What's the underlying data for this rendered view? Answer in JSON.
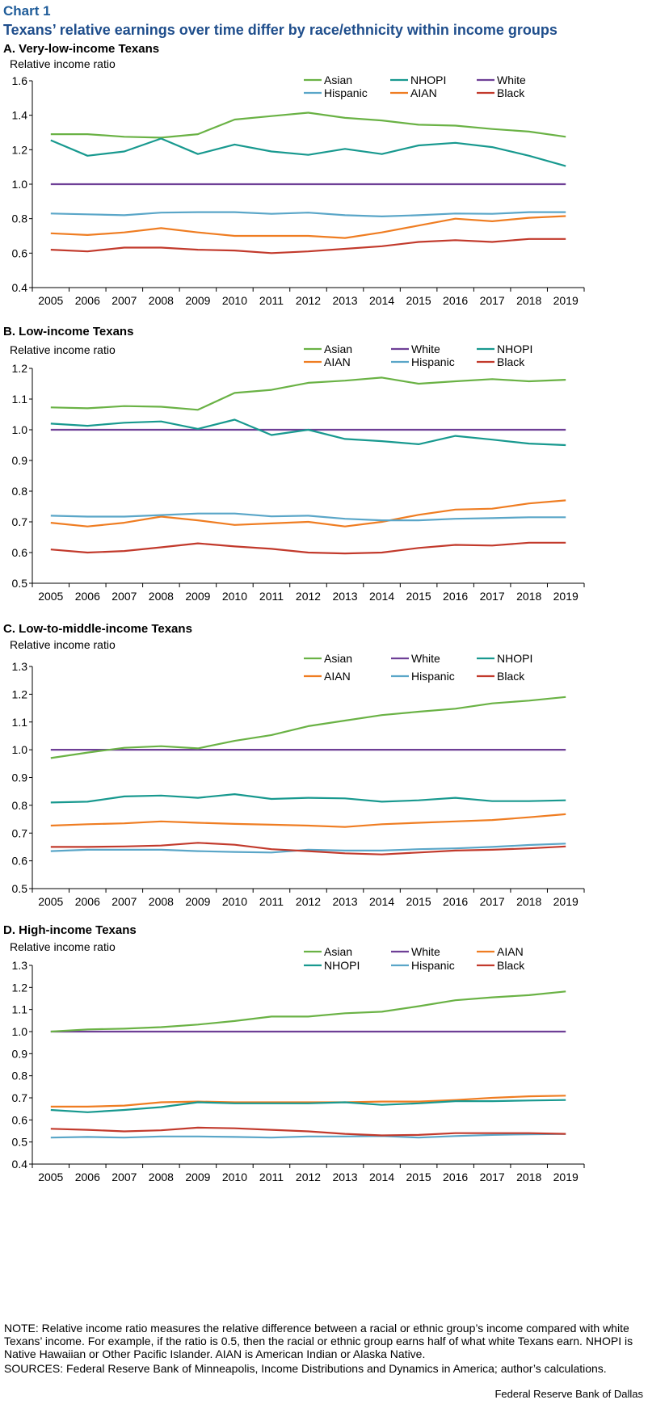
{
  "header": {
    "label": "Chart 1",
    "title": "Texans’ relative earnings over time differ by race/ethnicity within income groups"
  },
  "colors": {
    "Asian": "#6ab245",
    "NHOPI": "#18998f",
    "White": "#6e3f96",
    "Hispanic": "#5aa6c8",
    "AIAN": "#ef7d22",
    "Black": "#c23a2c"
  },
  "panels": [
    {
      "title": "A. Very-low-income Texans"
    },
    {
      "title": "B. Low-income Texans"
    },
    {
      "title": "C. Low-to-middle-income Texans"
    },
    {
      "title": "D. High-income Texans"
    }
  ],
  "chart_data": [
    {
      "type": "line",
      "title": "A. Very-low-income Texans",
      "ylabel": "Relative income ratio",
      "xlabel": "",
      "ylim": [
        0.4,
        1.6
      ],
      "yticks": [
        "0.4",
        "0.6",
        "0.8",
        "1.0",
        "1.2",
        "1.4",
        "1.6"
      ],
      "x": [
        "2005",
        "2006",
        "2007",
        "2008",
        "2009",
        "2010",
        "2011",
        "2012",
        "2013",
        "2014",
        "2015",
        "2016",
        "2017",
        "2018",
        "2019"
      ],
      "legend": [
        [
          "Asian",
          "NHOPI",
          "White"
        ],
        [
          "Hispanic",
          "AIAN",
          "Black"
        ]
      ],
      "series": [
        {
          "name": "Asian",
          "values": [
            1.29,
            1.29,
            1.275,
            1.27,
            1.29,
            1.375,
            1.395,
            1.415,
            1.385,
            1.37,
            1.345,
            1.34,
            1.32,
            1.305,
            1.275
          ]
        },
        {
          "name": "NHOPI",
          "values": [
            1.255,
            1.165,
            1.19,
            1.265,
            1.175,
            1.23,
            1.19,
            1.17,
            1.205,
            1.175,
            1.225,
            1.24,
            1.215,
            1.165,
            1.105
          ]
        },
        {
          "name": "White",
          "values": [
            1,
            1,
            1,
            1,
            1,
            1,
            1,
            1,
            1,
            1,
            1,
            1,
            1,
            1,
            1
          ]
        },
        {
          "name": "Hispanic",
          "values": [
            0.83,
            0.825,
            0.82,
            0.835,
            0.838,
            0.838,
            0.828,
            0.835,
            0.82,
            0.813,
            0.82,
            0.83,
            0.828,
            0.838,
            0.838
          ]
        },
        {
          "name": "AIAN",
          "values": [
            0.715,
            0.705,
            0.72,
            0.745,
            0.72,
            0.7,
            0.7,
            0.7,
            0.688,
            0.72,
            0.76,
            0.8,
            0.785,
            0.805,
            0.815
          ]
        },
        {
          "name": "Black",
          "values": [
            0.62,
            0.61,
            0.632,
            0.632,
            0.62,
            0.615,
            0.6,
            0.61,
            0.625,
            0.64,
            0.665,
            0.675,
            0.665,
            0.682,
            0.682
          ]
        }
      ]
    },
    {
      "type": "line",
      "title": "B. Low-income Texans",
      "ylabel": "Relative income ratio",
      "xlabel": "",
      "ylim": [
        0.5,
        1.2
      ],
      "yticks": [
        "0.5",
        "0.6",
        "0.7",
        "0.8",
        "0.9",
        "1.0",
        "1.1",
        "1.2"
      ],
      "x": [
        "2005",
        "2006",
        "2007",
        "2008",
        "2009",
        "2010",
        "2011",
        "2012",
        "2013",
        "2014",
        "2015",
        "2016",
        "2017",
        "2018",
        "2019"
      ],
      "legend": [
        [
          "Asian",
          "White",
          "NHOPI"
        ],
        [
          "AIAN",
          "Hispanic",
          "Black"
        ]
      ],
      "series": [
        {
          "name": "Asian",
          "values": [
            1.073,
            1.07,
            1.077,
            1.075,
            1.065,
            1.12,
            1.13,
            1.153,
            1.16,
            1.17,
            1.15,
            1.158,
            1.165,
            1.158,
            1.163
          ]
        },
        {
          "name": "White",
          "values": [
            1,
            1,
            1,
            1,
            1,
            1,
            1,
            1,
            1,
            1,
            1,
            1,
            1,
            1,
            1
          ]
        },
        {
          "name": "NHOPI",
          "values": [
            1.02,
            1.013,
            1.023,
            1.027,
            1.003,
            1.033,
            0.983,
            1.0,
            0.97,
            0.963,
            0.953,
            0.98,
            0.968,
            0.955,
            0.95
          ]
        },
        {
          "name": "AIAN",
          "values": [
            0.697,
            0.685,
            0.697,
            0.717,
            0.705,
            0.69,
            0.695,
            0.7,
            0.685,
            0.7,
            0.723,
            0.74,
            0.743,
            0.76,
            0.77
          ]
        },
        {
          "name": "Hispanic",
          "values": [
            0.72,
            0.717,
            0.717,
            0.722,
            0.727,
            0.727,
            0.718,
            0.72,
            0.71,
            0.705,
            0.705,
            0.71,
            0.712,
            0.715,
            0.715
          ]
        },
        {
          "name": "Black",
          "values": [
            0.61,
            0.6,
            0.605,
            0.617,
            0.63,
            0.62,
            0.612,
            0.6,
            0.597,
            0.6,
            0.615,
            0.625,
            0.623,
            0.632,
            0.632
          ]
        }
      ]
    },
    {
      "type": "line",
      "title": "C. Low-to-middle-income Texans",
      "ylabel": "Relative income ratio",
      "xlabel": "",
      "ylim": [
        0.5,
        1.3
      ],
      "yticks": [
        "0.5",
        "0.6",
        "0.7",
        "0.8",
        "0.9",
        "1.0",
        "1.1",
        "1.2",
        "1.3"
      ],
      "x": [
        "2005",
        "2006",
        "2007",
        "2008",
        "2009",
        "2010",
        "2011",
        "2012",
        "2013",
        "2014",
        "2015",
        "2016",
        "2017",
        "2018",
        "2019"
      ],
      "legend": [
        [
          "Asian",
          "White",
          "NHOPI"
        ],
        [
          "AIAN",
          "Hispanic",
          "Black"
        ]
      ],
      "series": [
        {
          "name": "Asian",
          "values": [
            0.97,
            0.99,
            1.007,
            1.013,
            1.005,
            1.032,
            1.053,
            1.085,
            1.105,
            1.125,
            1.137,
            1.148,
            1.167,
            1.177,
            1.19
          ]
        },
        {
          "name": "White",
          "values": [
            1,
            1,
            1,
            1,
            1,
            1,
            1,
            1,
            1,
            1,
            1,
            1,
            1,
            1,
            1
          ]
        },
        {
          "name": "NHOPI",
          "values": [
            0.81,
            0.813,
            0.832,
            0.835,
            0.827,
            0.84,
            0.823,
            0.827,
            0.825,
            0.813,
            0.818,
            0.827,
            0.815,
            0.815,
            0.818
          ]
        },
        {
          "name": "AIAN",
          "values": [
            0.727,
            0.732,
            0.735,
            0.742,
            0.737,
            0.733,
            0.73,
            0.727,
            0.722,
            0.732,
            0.737,
            0.742,
            0.747,
            0.757,
            0.768
          ]
        },
        {
          "name": "Hispanic",
          "values": [
            0.635,
            0.64,
            0.64,
            0.64,
            0.635,
            0.632,
            0.63,
            0.64,
            0.637,
            0.637,
            0.642,
            0.645,
            0.65,
            0.657,
            0.662
          ]
        },
        {
          "name": "Black",
          "values": [
            0.65,
            0.65,
            0.652,
            0.655,
            0.665,
            0.658,
            0.642,
            0.635,
            0.627,
            0.623,
            0.63,
            0.637,
            0.64,
            0.645,
            0.652
          ]
        }
      ]
    },
    {
      "type": "line",
      "title": "D. High-income Texans",
      "ylabel": "Relative income ratio",
      "xlabel": "",
      "ylim": [
        0.4,
        1.3
      ],
      "yticks": [
        "0.4",
        "0.5",
        "0.6",
        "0.7",
        "0.8",
        "0.9",
        "1.0",
        "1.1",
        "1.2",
        "1.3"
      ],
      "x": [
        "2005",
        "2006",
        "2007",
        "2008",
        "2009",
        "2010",
        "2011",
        "2012",
        "2013",
        "2014",
        "2015",
        "2016",
        "2017",
        "2018",
        "2019"
      ],
      "legend": [
        [
          "Asian",
          "White",
          "AIAN"
        ],
        [
          "NHOPI",
          "Hispanic",
          "Black"
        ]
      ],
      "series": [
        {
          "name": "Asian",
          "values": [
            1.0,
            1.01,
            1.013,
            1.02,
            1.032,
            1.048,
            1.068,
            1.068,
            1.083,
            1.09,
            1.115,
            1.142,
            1.155,
            1.165,
            1.182
          ]
        },
        {
          "name": "White",
          "values": [
            1,
            1,
            1,
            1,
            1,
            1,
            1,
            1,
            1,
            1,
            1,
            1,
            1,
            1,
            1
          ]
        },
        {
          "name": "AIAN",
          "values": [
            0.66,
            0.66,
            0.665,
            0.68,
            0.683,
            0.68,
            0.68,
            0.68,
            0.68,
            0.683,
            0.683,
            0.69,
            0.7,
            0.707,
            0.71
          ]
        },
        {
          "name": "NHOPI",
          "values": [
            0.645,
            0.635,
            0.645,
            0.658,
            0.68,
            0.675,
            0.675,
            0.675,
            0.68,
            0.668,
            0.675,
            0.685,
            0.685,
            0.688,
            0.69
          ]
        },
        {
          "name": "Hispanic",
          "values": [
            0.52,
            0.523,
            0.52,
            0.525,
            0.525,
            0.523,
            0.52,
            0.525,
            0.525,
            0.527,
            0.52,
            0.527,
            0.532,
            0.535,
            0.537
          ]
        },
        {
          "name": "Black",
          "values": [
            0.56,
            0.555,
            0.548,
            0.553,
            0.565,
            0.562,
            0.555,
            0.548,
            0.537,
            0.53,
            0.532,
            0.54,
            0.54,
            0.54,
            0.537
          ]
        }
      ]
    }
  ],
  "footer": {
    "note": "NOTE: Relative income ratio measures the relative difference between a racial or ethnic group’s income compared with white Texans’ income. For example, if the ratio is 0.5, then the racial or ethnic group earns half of what white Texans earn. NHOPI is Native Hawaiian or Other Pacific Islander. AIAN is American Indian or Alaska Native.",
    "sources": "SOURCES: Federal Reserve Bank of Minneapolis, Income Distributions and Dynamics in America; author’s calculations.",
    "credit": "Federal Reserve Bank of Dallas"
  }
}
